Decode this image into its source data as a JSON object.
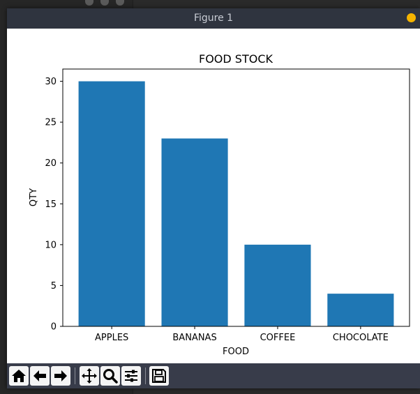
{
  "window": {
    "title": "Figure 1"
  },
  "toolbar": {
    "buttons": [
      {
        "name": "home-icon",
        "label": "Home"
      },
      {
        "name": "back-icon",
        "label": "Back"
      },
      {
        "name": "forward-icon",
        "label": "Forward"
      },
      {
        "name": "pan-icon",
        "label": "Pan"
      },
      {
        "name": "zoom-icon",
        "label": "Zoom"
      },
      {
        "name": "configure-subplots-icon",
        "label": "Configure subplots"
      },
      {
        "name": "save-icon",
        "label": "Save"
      }
    ]
  },
  "colors": {
    "bar": "#1f77b4",
    "titlebar": "#2f343f",
    "toolbar": "#383c4a",
    "close_dot": "#f5b400"
  },
  "chart_data": {
    "type": "bar",
    "title": "FOOD STOCK",
    "xlabel": "FOOD",
    "ylabel": "QTY",
    "categories": [
      "APPLES",
      "BANANAS",
      "COFFEE",
      "CHOCOLATE"
    ],
    "values": [
      30,
      23,
      10,
      4
    ],
    "ylim": [
      0,
      31.5
    ],
    "yticks": [
      0,
      5,
      10,
      15,
      20,
      25,
      30
    ],
    "grid": false
  }
}
